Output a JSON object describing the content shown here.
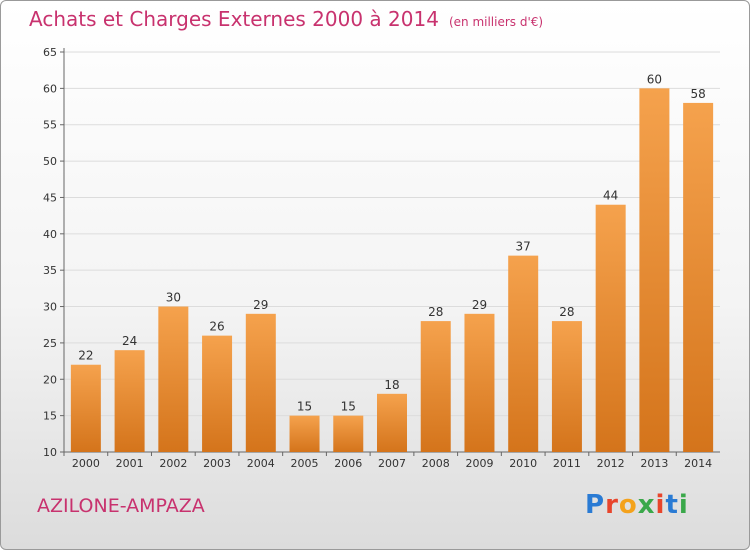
{
  "title": "Achats et Charges Externes 2000 à 2014",
  "subtitle": "(en milliers d'€)",
  "commune": "AZILONE-AMPAZA",
  "logo": {
    "letters": [
      "P",
      "r",
      "o",
      "x",
      "i",
      "t",
      "i"
    ],
    "colors": [
      "#2a7bd4",
      "#e8452c",
      "#f4a21c",
      "#3aa84a",
      "#e8452c",
      "#2a7bd4",
      "#3aa84a"
    ]
  },
  "colors": {
    "bar_top": "#f5a24d",
    "bar_bottom": "#d4741b",
    "accent": "#c8326e"
  },
  "chart_data": {
    "type": "bar",
    "title": "Achats et Charges Externes 2000 à 2014",
    "xlabel": "",
    "ylabel": "",
    "categories": [
      "2000",
      "2001",
      "2002",
      "2003",
      "2004",
      "2005",
      "2006",
      "2007",
      "2008",
      "2009",
      "2010",
      "2011",
      "2012",
      "2013",
      "2014"
    ],
    "values": [
      22,
      24,
      30,
      26,
      29,
      15,
      15,
      18,
      28,
      29,
      37,
      28,
      44,
      60,
      58
    ],
    "ylim": [
      10,
      65
    ],
    "yticks": [
      10,
      15,
      20,
      25,
      30,
      35,
      40,
      45,
      50,
      55,
      60,
      65
    ],
    "grid": true
  }
}
